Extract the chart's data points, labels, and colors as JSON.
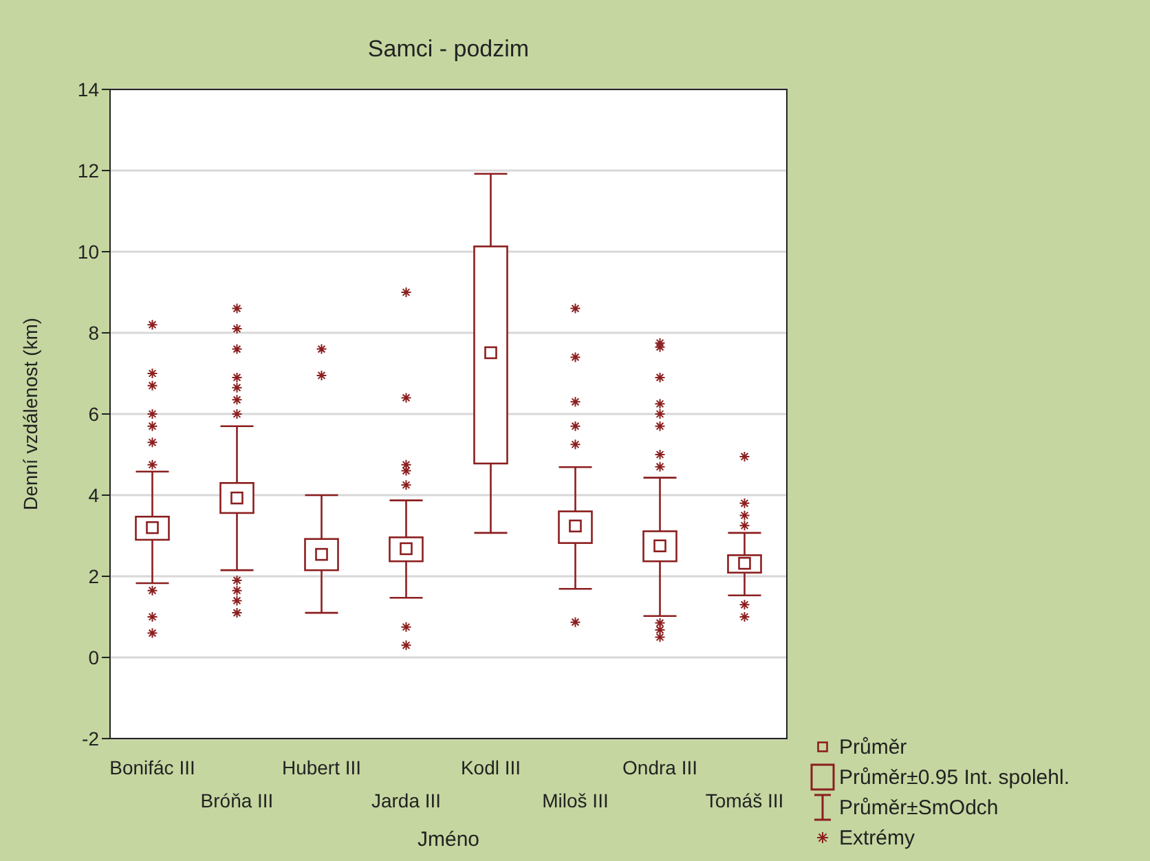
{
  "chart_data": {
    "type": "box",
    "title": "Samci - podzim",
    "xlabel": "Jméno",
    "ylabel": "Denní vzdálenost (km)",
    "categories": [
      "Bonifác III",
      "Bróňa III",
      "Hubert III",
      "Jarda III",
      "Kodl III",
      "Miloš III",
      "Ondra III",
      "Tomáš III"
    ],
    "color": "#8b1e1e",
    "boxes": [
      {
        "low": 1.83,
        "q1": 2.9,
        "median": 3.2,
        "q3": 3.47,
        "high": 4.58,
        "outliers": [
          8.2,
          7.0,
          6.7,
          6.0,
          5.7,
          5.3,
          4.75,
          1.65,
          1.0,
          0.6
        ]
      },
      {
        "low": 2.15,
        "q1": 3.56,
        "median": 3.93,
        "q3": 4.3,
        "high": 5.7,
        "outliers": [
          8.6,
          8.1,
          7.6,
          6.9,
          6.65,
          6.35,
          6.0,
          1.9,
          1.65,
          1.4,
          1.1
        ]
      },
      {
        "low": 1.1,
        "q1": 2.15,
        "median": 2.54,
        "q3": 2.92,
        "high": 4.0,
        "outliers": [
          7.6,
          6.95
        ]
      },
      {
        "low": 1.47,
        "q1": 2.37,
        "median": 2.68,
        "q3": 2.96,
        "high": 3.87,
        "outliers": [
          9.0,
          6.4,
          4.75,
          4.6,
          4.25,
          0.75,
          0.3
        ]
      },
      {
        "low": 3.07,
        "q1": 4.78,
        "median": 7.51,
        "q3": 10.13,
        "high": 11.92
      },
      {
        "low": 1.69,
        "q1": 2.82,
        "median": 3.24,
        "q3": 3.6,
        "high": 4.69,
        "outliers": [
          8.6,
          7.4,
          6.3,
          5.7,
          5.25,
          0.87
        ]
      },
      {
        "low": 1.02,
        "q1": 2.37,
        "median": 2.75,
        "q3": 3.11,
        "high": 4.43,
        "outliers": [
          7.75,
          7.65,
          6.9,
          6.25,
          6.0,
          5.7,
          5.0,
          4.7,
          0.85,
          0.68,
          0.5
        ]
      },
      {
        "low": 1.53,
        "q1": 2.09,
        "median": 2.32,
        "q3": 2.52,
        "high": 3.07,
        "outliers": [
          4.95,
          3.8,
          3.5,
          3.25,
          1.3,
          1.0
        ]
      }
    ],
    "ylim": [
      -2,
      14
    ],
    "yticks": [
      -2,
      0,
      2,
      4,
      6,
      8,
      10,
      12,
      14
    ],
    "grid": "y",
    "annotations": [
      "Průměr",
      "Průměr±0.95 Int. spolehl.",
      "Průměr±SmOdch",
      "Extrémy"
    ]
  }
}
